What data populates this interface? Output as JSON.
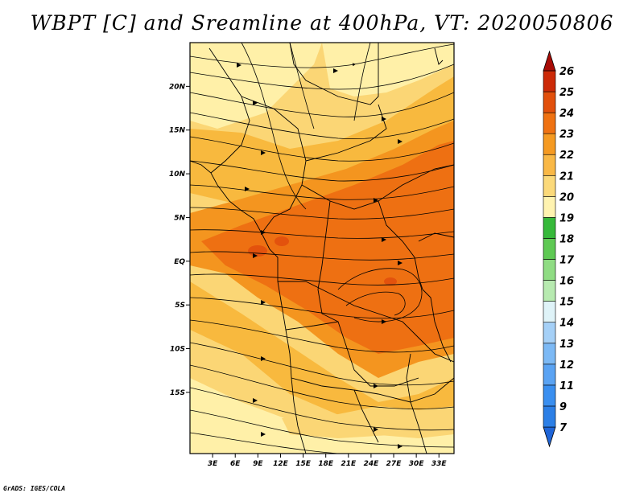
{
  "title": "WBPT [C] and Sreamline at 400hPa, VT: 2020050806",
  "credit": "GrADS: IGES/COLA",
  "map": {
    "lon_range": [
      0,
      35
    ],
    "lat_range": [
      -22,
      25
    ],
    "x_ticks": [
      "3E",
      "6E",
      "9E",
      "12E",
      "15E",
      "18E",
      "21E",
      "24E",
      "27E",
      "30E",
      "33E"
    ],
    "x_tick_values": [
      3,
      6,
      9,
      12,
      15,
      18,
      21,
      24,
      27,
      30,
      33
    ],
    "y_ticks": [
      "20N",
      "15N",
      "10N",
      "5N",
      "EQ",
      "5S",
      "10S",
      "15S"
    ],
    "y_tick_values": [
      20,
      15,
      10,
      5,
      0,
      -5,
      -10,
      -15
    ]
  },
  "colorbar": {
    "levels": [
      "7",
      "9",
      "11",
      "12",
      "13",
      "14",
      "15",
      "16",
      "17",
      "18",
      "19",
      "20",
      "21",
      "22",
      "23",
      "24",
      "25",
      "26"
    ],
    "colors": [
      "#1f65d8",
      "#2c7fe6",
      "#3a8ff0",
      "#5aa3f3",
      "#7cb9f5",
      "#a5d0f7",
      "#dff3f8",
      "#b7eab0",
      "#8fdc83",
      "#5ec953",
      "#36b93a",
      "#fff3b0",
      "#fbd97a",
      "#f9b846",
      "#f59a22",
      "#ef7212",
      "#e2500c",
      "#cc2a08",
      "#a80c06"
    ]
  },
  "wbpt_colors": {
    "c19": "#fff0a8",
    "c20": "#fbd675",
    "c21": "#f8b93e",
    "c22": "#f4951f",
    "c23": "#ee7012",
    "c24": "#e3520d"
  }
}
